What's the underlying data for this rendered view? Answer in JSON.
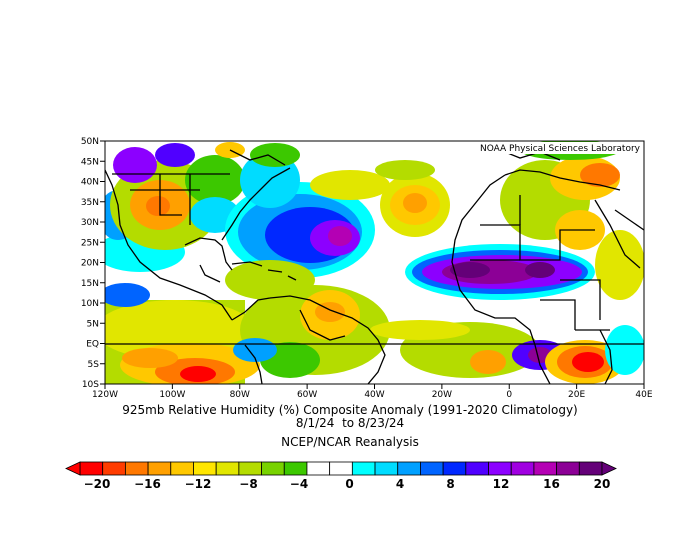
{
  "map": {
    "watermark": "NOAA Physical Sciences Laboratory",
    "lat_labels": [
      "50N",
      "45N",
      "40N",
      "35N",
      "30N",
      "25N",
      "20N",
      "15N",
      "10N",
      "5N",
      "EQ",
      "5S",
      "10S"
    ],
    "lon_labels": [
      "120W",
      "100W",
      "80W",
      "60W",
      "40W",
      "20W",
      "0",
      "20E",
      "40E"
    ],
    "colors": {
      "land_outline": "#000000",
      "ocean_neutral": "#ffffff"
    }
  },
  "captions": {
    "line1": "925mb Relative Humidity (%) Composite Anomaly (1991-2020 Climatology)",
    "line2": "8/1/24  to 8/23/24",
    "line3": "NCEP/NCAR Reanalysis"
  },
  "legend": {
    "labels": [
      "-20",
      "-16",
      "-12",
      "-8",
      "-4",
      "0",
      "4",
      "8",
      "12",
      "16",
      "20"
    ],
    "colors": [
      "#ff0000",
      "#ff3c00",
      "#ff7800",
      "#ffa000",
      "#ffc800",
      "#ffe600",
      "#e1e600",
      "#b4dc00",
      "#78d200",
      "#3cc800",
      "#ffffff",
      "#ffffff",
      "#00ffff",
      "#00dcff",
      "#00a0ff",
      "#0064ff",
      "#0028ff",
      "#5000ff",
      "#8c00ff",
      "#a000e1",
      "#b400b4",
      "#8c0096",
      "#640078"
    ]
  }
}
